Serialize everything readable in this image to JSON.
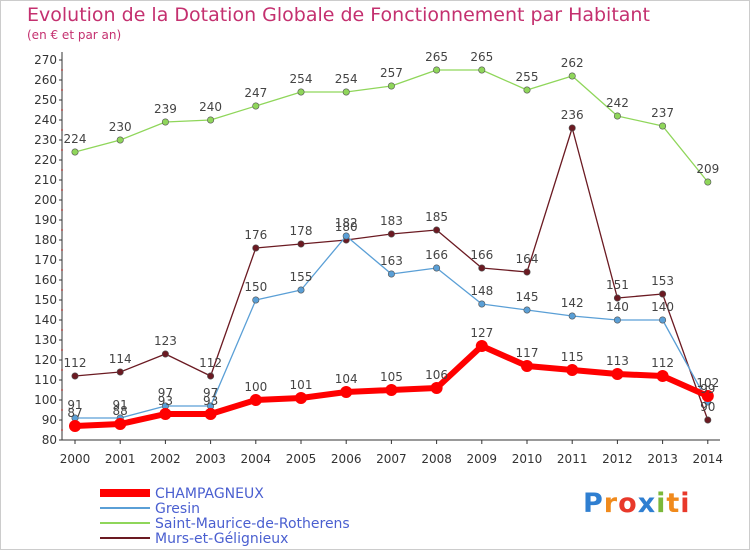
{
  "title": "Evolution de la Dotation Globale de Fonctionnement par Habitant",
  "subtitle": "(en € et par an)",
  "logo": {
    "text": "Proxiti",
    "letters": [
      "P",
      "r",
      "o",
      "x",
      "i",
      "t",
      "i"
    ],
    "colors": [
      "#2f7fd1",
      "#f08a1c",
      "#e8392b",
      "#2f7fd1",
      "#7bb83a",
      "#f08a1c",
      "#e8392b"
    ]
  },
  "chart_data": {
    "type": "line",
    "title": "Evolution de la Dotation Globale de Fonctionnement par Habitant",
    "subtitle": "(en € et par an)",
    "xlabel": "",
    "ylabel": "",
    "ylim": [
      80,
      270
    ],
    "yticks": [
      80,
      90,
      100,
      110,
      120,
      130,
      140,
      150,
      160,
      170,
      180,
      190,
      200,
      210,
      220,
      230,
      240,
      250,
      260,
      270
    ],
    "grid": false,
    "legend": "bottom-left",
    "categories": [
      "2000",
      "2001",
      "2002",
      "2003",
      "2004",
      "2005",
      "2006",
      "2007",
      "2008",
      "2009",
      "2010",
      "2011",
      "2012",
      "2013",
      "2014"
    ],
    "series": [
      {
        "name": "Murs-et-Gélignieux",
        "color": "#6b1a22",
        "width": 1.3,
        "values": [
          112,
          114,
          123,
          112,
          176,
          178,
          180,
          183,
          185,
          166,
          164,
          236,
          151,
          153,
          90
        ],
        "labels": [
          "112",
          "114",
          "123",
          "112",
          "176",
          "178",
          "180",
          "183",
          "185",
          "166",
          "164",
          "236",
          "151",
          "153",
          "90"
        ]
      },
      {
        "name": "Gresin",
        "color": "#5a9fd6",
        "width": 1.3,
        "values": [
          91,
          91,
          97,
          97,
          150,
          155,
          182,
          163,
          166,
          148,
          145,
          142,
          140,
          140,
          99
        ],
        "labels": [
          "91",
          "91",
          "97",
          "97",
          "150",
          "155",
          "182",
          "163",
          "166",
          "148",
          "145",
          "142",
          "140",
          "140",
          "99"
        ]
      },
      {
        "name": "Saint-Maurice-de-Rotherens",
        "color": "#8fd65a",
        "width": 1.3,
        "values": [
          224,
          230,
          239,
          240,
          247,
          254,
          254,
          257,
          265,
          265,
          255,
          262,
          242,
          237,
          209
        ],
        "labels": [
          "224",
          "230",
          "239",
          "240",
          "247",
          "254",
          "254",
          "257",
          "265",
          "265",
          "255",
          "262",
          "242",
          "237",
          "209"
        ]
      },
      {
        "name": "CHAMPAGNEUX",
        "color": "#ff0000",
        "width": 6,
        "values": [
          87,
          88,
          93,
          93,
          100,
          101,
          104,
          105,
          106,
          127,
          117,
          115,
          113,
          112,
          102
        ],
        "labels": [
          "87",
          "88",
          "93",
          "93",
          "100",
          "101",
          "104",
          "105",
          "106",
          "127",
          "117",
          "115",
          "113",
          "112",
          "102"
        ]
      }
    ],
    "legend_entries": [
      {
        "name": "CHAMPAGNEUX",
        "color": "#ff0000",
        "width": 8
      },
      {
        "name": "Gresin",
        "color": "#5a9fd6",
        "width": 2
      },
      {
        "name": "Saint-Maurice-de-Rotherens",
        "color": "#8fd65a",
        "width": 2
      },
      {
        "name": "Murs-et-Gélignieux",
        "color": "#6b1a22",
        "width": 2
      }
    ]
  }
}
